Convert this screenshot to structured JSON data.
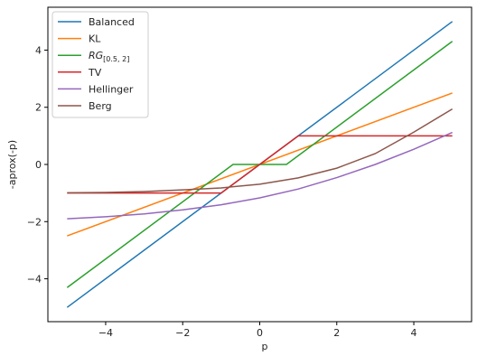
{
  "chart_data": {
    "type": "line",
    "title": "",
    "xlabel": "p",
    "ylabel": "-aprox(-p)",
    "xlim": [
      -5.5,
      5.5
    ],
    "ylim": [
      -5.5,
      5.5
    ],
    "xticks": [
      -4,
      -2,
      0,
      2,
      4
    ],
    "yticks": [
      -4,
      -2,
      0,
      2,
      4
    ],
    "xtick_labels": [
      "−4",
      "−2",
      "0",
      "2",
      "4"
    ],
    "ytick_labels": [
      "−4",
      "−2",
      "0",
      "2",
      "4"
    ],
    "grid": false,
    "legend_position": "top-left",
    "series": [
      {
        "name": "Balanced",
        "color": "#1f77b4",
        "x": [
          -5,
          5
        ],
        "y": [
          -5,
          5
        ]
      },
      {
        "name": "KL",
        "color": "#ff7f0e",
        "x": [
          -5,
          5
        ],
        "y": [
          -2.5,
          2.5
        ]
      },
      {
        "name": "RG",
        "name_sub": "[0.5, 2]",
        "color": "#2ca02c",
        "x": [
          -5,
          -0.693,
          0.693,
          5
        ],
        "y": [
          -4.307,
          0,
          0,
          4.307
        ]
      },
      {
        "name": "TV",
        "color": "#d62728",
        "x": [
          -5,
          -1,
          1,
          5
        ],
        "y": [
          -1,
          -1,
          1,
          1
        ]
      },
      {
        "name": "Hellinger",
        "color": "#9467bd",
        "x": [
          -5,
          -4,
          -3,
          -2,
          -1,
          0,
          1,
          2,
          3,
          4,
          5
        ],
        "y": [
          -1.9,
          -1.83,
          -1.73,
          -1.59,
          -1.41,
          -1.17,
          -0.86,
          -0.46,
          0.0,
          0.53,
          1.12
        ]
      },
      {
        "name": "Berg",
        "color": "#8c564b",
        "x": [
          -5,
          -4,
          -3,
          -2,
          -1,
          0,
          1,
          2,
          3,
          4,
          5
        ],
        "y": [
          -0.99,
          -0.98,
          -0.95,
          -0.89,
          -0.82,
          -0.69,
          -0.47,
          -0.13,
          0.38,
          1.13,
          1.94
        ]
      }
    ]
  }
}
